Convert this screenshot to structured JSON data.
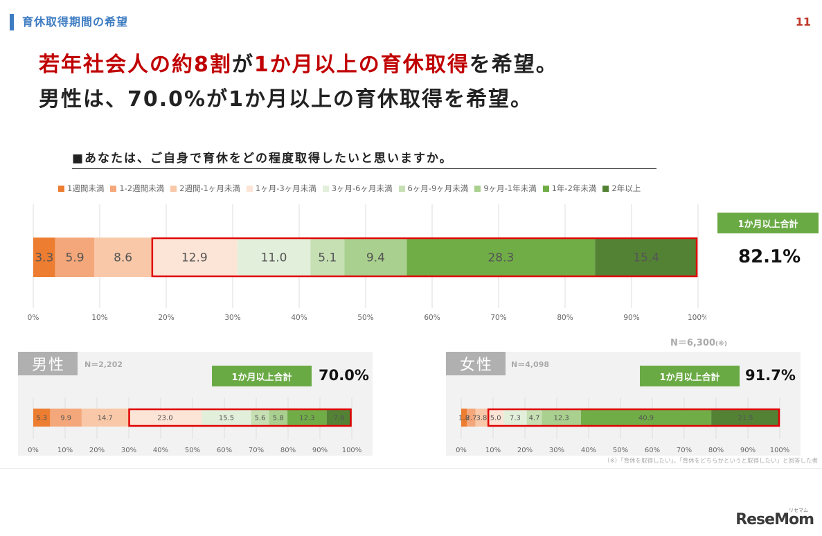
{
  "header": {
    "section_title": "育休取得期間の希望",
    "page_number": "11"
  },
  "headline": {
    "line1": [
      {
        "text": "若年社会人の約8割",
        "red": true
      },
      {
        "text": "が",
        "red": false
      },
      {
        "text": "1か月以上の育休取得",
        "red": true
      },
      {
        "text": "を希望。",
        "red": false
      }
    ],
    "line2": "男性は、70.0%が1か月以上の育休取得を希望。"
  },
  "question": "■あなたは、ご自身で育休をどの程度取得したいと思いますか。",
  "legend": [
    {
      "label": "1週間未満",
      "color": "#ed7d31"
    },
    {
      "label": "1-2週間未満",
      "color": "#f4a77a"
    },
    {
      "label": "2週間-1ヶ月未満",
      "color": "#f8c8a8"
    },
    {
      "label": "1ヶ月-3ヶ月未満",
      "color": "#fce4d6"
    },
    {
      "label": "3ヶ月-6ヶ月未満",
      "color": "#e2efda"
    },
    {
      "label": "6ヶ月-9ヶ月未満",
      "color": "#c6e0b4"
    },
    {
      "label": "9ヶ月-1年未満",
      "color": "#a9d08e"
    },
    {
      "label": "1年-2年未満",
      "color": "#70ad47"
    },
    {
      "label": "2年以上",
      "color": "#548235"
    }
  ],
  "colors": {
    "highlight_border": "#e00000",
    "total_label_bg": "#6aaa45"
  },
  "total_label": "1か月以上合計",
  "panels": {
    "all": {
      "n_label": "N＝6,300",
      "n_note": "(※)",
      "total_value": "82.1%"
    },
    "male": {
      "title": "男性",
      "n_label": "N＝2,202",
      "total_value": "70.0%"
    },
    "female": {
      "title": "女性",
      "n_label": "N＝4,098",
      "total_value": "91.7%"
    }
  },
  "footnote": "（※）「育休を取得したい」、「育休をどちらかというと取得したい」と回答した者",
  "logo": {
    "text": "ReseMom",
    "small": "リセマム"
  },
  "chart_data": [
    {
      "type": "bar",
      "orientation": "horizontal-stacked-percent",
      "group": "全体",
      "xlim": [
        0,
        100
      ],
      "x_ticks": [
        "0%",
        "10%",
        "20%",
        "30%",
        "40%",
        "50%",
        "60%",
        "70%",
        "80%",
        "90%",
        "100%"
      ],
      "grid": true,
      "series": [
        {
          "name": "1週間未満",
          "values": [
            3.3
          ]
        },
        {
          "name": "1-2週間未満",
          "values": [
            5.9
          ]
        },
        {
          "name": "2週間-1ヶ月未満",
          "values": [
            8.6
          ]
        },
        {
          "name": "1ヶ月-3ヶ月未満",
          "values": [
            12.9
          ]
        },
        {
          "name": "3ヶ月-6ヶ月未満",
          "values": [
            11.0
          ]
        },
        {
          "name": "6ヶ月-9ヶ月未満",
          "values": [
            5.1
          ]
        },
        {
          "name": "9ヶ月-1年未満",
          "values": [
            9.4
          ]
        },
        {
          "name": "1年-2年未満",
          "values": [
            28.3
          ]
        },
        {
          "name": "2年以上",
          "values": [
            15.4
          ]
        }
      ],
      "highlight_from_segment": 3
    },
    {
      "type": "bar",
      "orientation": "horizontal-stacked-percent",
      "group": "男性",
      "xlim": [
        0,
        100
      ],
      "x_ticks": [
        "0%",
        "10%",
        "20%",
        "30%",
        "40%",
        "50%",
        "60%",
        "70%",
        "80%",
        "90%",
        "100%"
      ],
      "grid": true,
      "series": [
        {
          "name": "1週間未満",
          "values": [
            5.3
          ]
        },
        {
          "name": "1-2週間未満",
          "values": [
            9.9
          ]
        },
        {
          "name": "2週間-1ヶ月未満",
          "values": [
            14.7
          ]
        },
        {
          "name": "1ヶ月-3ヶ月未満",
          "values": [
            23.0
          ]
        },
        {
          "name": "3ヶ月-6ヶ月未満",
          "values": [
            15.5
          ]
        },
        {
          "name": "6ヶ月-9ヶ月未満",
          "values": [
            5.6
          ]
        },
        {
          "name": "9ヶ月-1年未満",
          "values": [
            5.8
          ]
        },
        {
          "name": "1年-2年未満",
          "values": [
            12.3
          ]
        },
        {
          "name": "2年以上",
          "values": [
            7.8
          ]
        }
      ],
      "highlight_from_segment": 3
    },
    {
      "type": "bar",
      "orientation": "horizontal-stacked-percent",
      "group": "女性",
      "xlim": [
        0,
        100
      ],
      "x_ticks": [
        "0%",
        "10%",
        "20%",
        "30%",
        "40%",
        "50%",
        "60%",
        "70%",
        "80%",
        "90%",
        "100%"
      ],
      "grid": true,
      "series": [
        {
          "name": "1週間未満",
          "values": [
            1.8
          ]
        },
        {
          "name": "1-2週間未満",
          "values": [
            2.7
          ]
        },
        {
          "name": "2週間-1ヶ月未満",
          "values": [
            3.8
          ]
        },
        {
          "name": "1ヶ月-3ヶ月未満",
          "values": [
            5.0
          ]
        },
        {
          "name": "3ヶ月-6ヶ月未満",
          "values": [
            7.3
          ]
        },
        {
          "name": "6ヶ月-9ヶ月未満",
          "values": [
            4.7
          ]
        },
        {
          "name": "9ヶ月-1年未満",
          "values": [
            12.3
          ]
        },
        {
          "name": "1年-2年未満",
          "values": [
            40.9
          ]
        },
        {
          "name": "2年以上",
          "values": [
            21.5
          ]
        }
      ],
      "highlight_from_segment": 3
    }
  ]
}
